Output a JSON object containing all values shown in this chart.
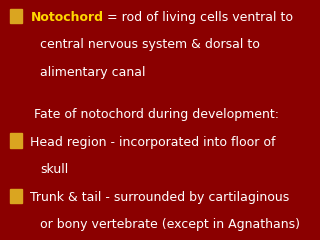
{
  "background_color": "#8B0000",
  "bullet_color": "#DAA520",
  "text_color": "#FFFFFF",
  "notochord_color": "#FFD700",
  "font_family": "DejaVu Sans",
  "font_size": 9.0,
  "lines": [
    {
      "type": "bullet",
      "parts": [
        {
          "text": "Notochord",
          "color": "#FFD700",
          "bold": true
        },
        {
          "text": " = rod of living cells ventral to",
          "color": "#FFFFFF",
          "bold": false
        }
      ]
    },
    {
      "type": "continuation",
      "text": "central nervous system & dorsal to",
      "color": "#FFFFFF"
    },
    {
      "type": "continuation",
      "text": "alimentary canal",
      "color": "#FFFFFF"
    },
    {
      "type": "blank"
    },
    {
      "type": "subheader",
      "text": "Fate of notochord during development:",
      "color": "#FFFFFF"
    },
    {
      "type": "bullet",
      "parts": [
        {
          "text": "Head region - incorporated into floor of",
          "color": "#FFFFFF",
          "bold": false
        }
      ]
    },
    {
      "type": "continuation",
      "text": "skull",
      "color": "#FFFFFF"
    },
    {
      "type": "bullet",
      "parts": [
        {
          "text": "Trunk & tail - surrounded by cartilaginous",
          "color": "#FFFFFF",
          "bold": false
        }
      ]
    },
    {
      "type": "continuation",
      "text": "or bony vertebrate (except in Agnathans)",
      "color": "#FFFFFF"
    }
  ]
}
